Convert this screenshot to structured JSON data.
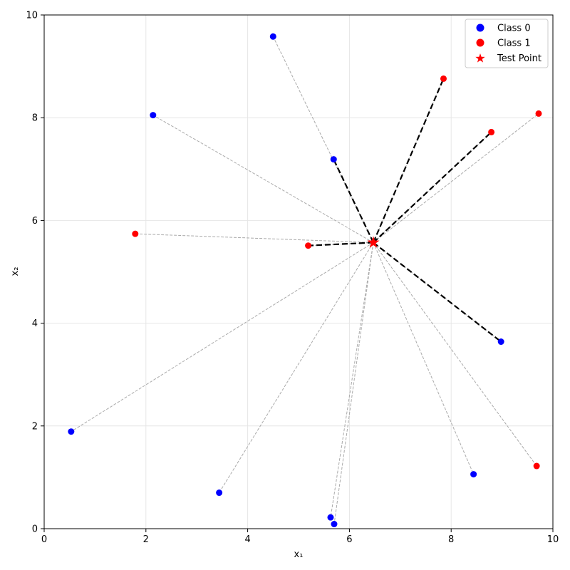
{
  "chart_data": {
    "type": "scatter",
    "title": "",
    "xlabel": "x₁",
    "ylabel": "x₂",
    "xlim": [
      0,
      10
    ],
    "ylim": [
      0,
      10
    ],
    "xticks": [
      "0",
      "2",
      "4",
      "6",
      "8",
      "10"
    ],
    "yticks": [
      "0",
      "2",
      "4",
      "6",
      "8",
      "10"
    ],
    "grid": true,
    "legend_position": "top-right",
    "colors": {
      "class0": "#0000ff",
      "class1": "#ff0000",
      "neighbor_line": "#000000",
      "other_line": "#aaaaaa"
    },
    "test_point": {
      "name": "Test Point",
      "x": 6.47,
      "y": 5.57
    },
    "series": [
      {
        "name": "Class 0",
        "points": [
          [
            4.5,
            9.58
          ],
          [
            2.14,
            8.05
          ],
          [
            5.69,
            7.19
          ],
          [
            8.98,
            3.64
          ],
          [
            0.53,
            1.89
          ],
          [
            3.44,
            0.7
          ],
          [
            5.63,
            0.22
          ],
          [
            5.7,
            0.09
          ],
          [
            8.44,
            1.06
          ]
        ]
      },
      {
        "name": "Class 1",
        "points": [
          [
            7.85,
            8.76
          ],
          [
            9.72,
            8.08
          ],
          [
            8.79,
            7.72
          ],
          [
            1.79,
            5.74
          ],
          [
            5.19,
            5.51
          ],
          [
            9.68,
            1.22
          ]
        ]
      }
    ],
    "nearest_neighbors": [
      [
        5.69,
        7.19
      ],
      [
        7.85,
        8.76
      ],
      [
        8.79,
        7.72
      ],
      [
        5.19,
        5.51
      ],
      [
        8.98,
        3.64
      ]
    ]
  }
}
